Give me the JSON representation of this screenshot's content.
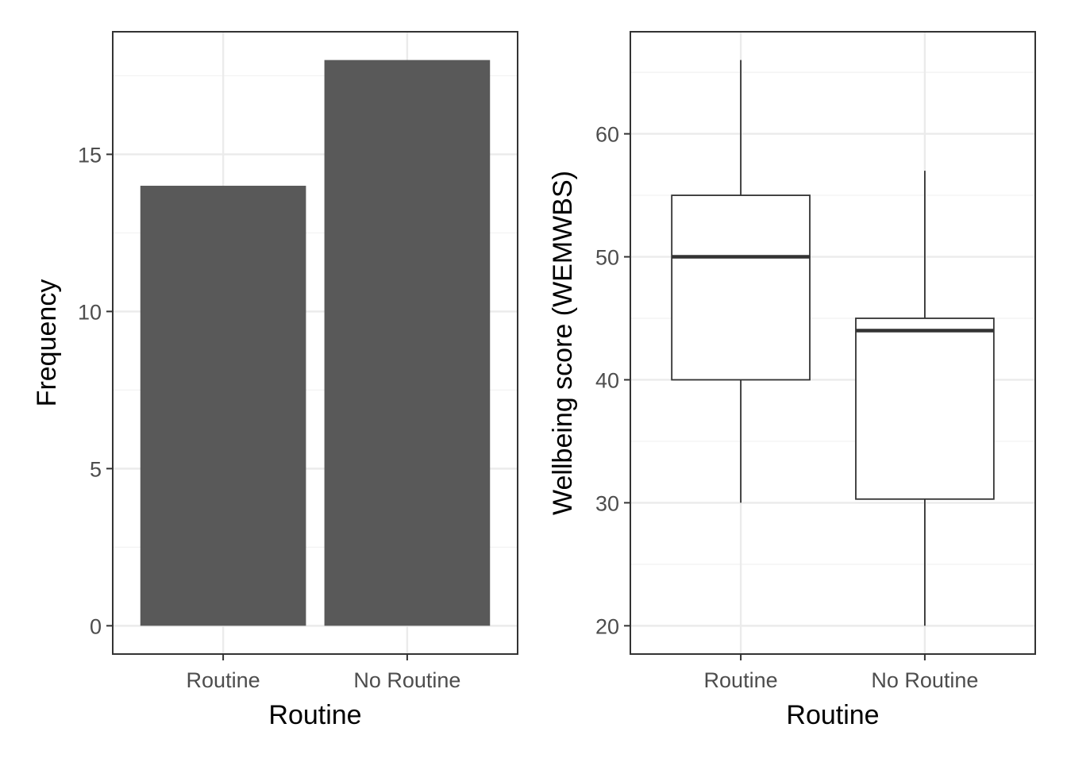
{
  "chart_data": [
    {
      "type": "bar",
      "categories": [
        "Routine",
        "No Routine"
      ],
      "values": [
        14,
        18
      ],
      "xlabel": "Routine",
      "ylabel": "Frequency",
      "ylim": [
        -0.9,
        18.9
      ],
      "yticks": [
        0,
        5,
        10,
        15
      ],
      "ytick_labels": [
        "0",
        "5",
        "10",
        "15"
      ],
      "grid": true,
      "bar_color": "#595959"
    },
    {
      "type": "boxplot",
      "categories": [
        "Routine",
        "No Routine"
      ],
      "series": [
        {
          "category": "Routine",
          "min": 30,
          "q1": 40,
          "median": 50,
          "q3": 55,
          "max": 66
        },
        {
          "category": "No Routine",
          "min": 20,
          "q1": 30.3,
          "median": 44,
          "q3": 45,
          "max": 57
        }
      ],
      "xlabel": "Routine",
      "ylabel": "Wellbeing score (WEMWBS)",
      "ylim": [
        17.7,
        68.3
      ],
      "yticks": [
        20,
        30,
        40,
        50,
        60
      ],
      "ytick_labels": [
        "20",
        "30",
        "40",
        "50",
        "60"
      ],
      "grid": true,
      "line_color": "#333333"
    }
  ]
}
